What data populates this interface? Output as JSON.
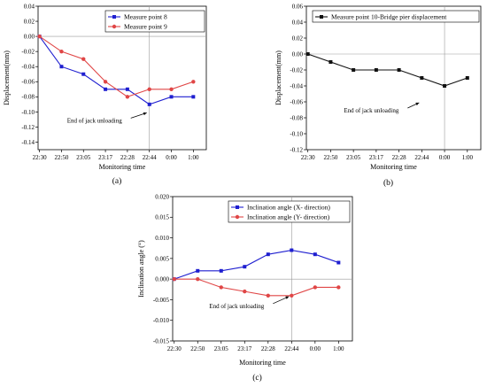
{
  "chart_data": [
    {
      "type": "line",
      "caption": "(a)",
      "xlabel": "Monitoring time",
      "ylabel": "Displacement(mm)",
      "categories": [
        "22:30",
        "22:50",
        "23:05",
        "23:17",
        "22:28",
        "22:44",
        "0:00",
        "1:00"
      ],
      "ylim": [
        -0.15,
        0.04
      ],
      "yticks": [
        "0.04",
        "0.02",
        "0.00",
        "-0.02",
        "-0.04",
        "-0.06",
        "-0.08",
        "-0.10",
        "-0.12",
        "-0.14"
      ],
      "ytick_values": [
        0.04,
        0.02,
        0.0,
        -0.02,
        -0.04,
        -0.06,
        -0.08,
        -0.1,
        -0.12,
        -0.14
      ],
      "legend_position": "top-right",
      "series": [
        {
          "name": "Measure point 8",
          "color": "#1f1fd0",
          "marker": "square",
          "values": [
            0.0,
            -0.04,
            -0.05,
            -0.07,
            -0.07,
            -0.09,
            -0.08,
            -0.08
          ]
        },
        {
          "name": "Measure point 9",
          "color": "#e04646",
          "marker": "circle",
          "values": [
            0.0,
            -0.02,
            -0.03,
            -0.06,
            -0.08,
            -0.07,
            -0.07,
            -0.06
          ]
        }
      ],
      "annotation": {
        "text": "End of jack unloading",
        "at_category": "22:44",
        "at_value": -0.1
      },
      "vline_at": "22:44",
      "hline_at": 0
    },
    {
      "type": "line",
      "caption": "(b)",
      "xlabel": "Monitoring time",
      "ylabel": "Displacement(mm)",
      "categories": [
        "22:30",
        "22:50",
        "23:05",
        "23:17",
        "22:28",
        "22:44",
        "0:00",
        "1:00"
      ],
      "ylim": [
        -0.12,
        0.06
      ],
      "yticks": [
        "0.06",
        "0.04",
        "0.02",
        "0.00",
        "-0.02",
        "-0.04",
        "-0.06",
        "-0.08",
        "-0.10",
        "-0.12"
      ],
      "ytick_values": [
        0.06,
        0.04,
        0.02,
        0.0,
        -0.02,
        -0.04,
        -0.06,
        -0.08,
        -0.1,
        -0.12
      ],
      "legend_position": "top-right",
      "series": [
        {
          "name": "Measure point 10-Bridge pier displacement",
          "color": "#111111",
          "marker": "square",
          "values": [
            0.0,
            -0.01,
            -0.02,
            -0.02,
            -0.02,
            -0.03,
            -0.04,
            -0.03
          ]
        }
      ],
      "annotation": {
        "text": "End of jack unloading",
        "at_category": "22:44",
        "at_value": -0.06
      },
      "vline_at": "0:00",
      "hline_at": 0
    },
    {
      "type": "line",
      "caption": "(c)",
      "xlabel": "Monitoring time",
      "ylabel": "Inclination angle (°)",
      "categories": [
        "22:30",
        "22:50",
        "23:05",
        "23:17",
        "22:28",
        "22:44",
        "0:00",
        "1:00"
      ],
      "ylim": [
        -0.015,
        0.02
      ],
      "yticks": [
        "0.020",
        "0.015",
        "0.010",
        "0.005",
        "0.000",
        "-0.005",
        "-0.010",
        "-0.015"
      ],
      "ytick_values": [
        0.02,
        0.015,
        0.01,
        0.005,
        0.0,
        -0.005,
        -0.01,
        -0.015
      ],
      "legend_position": "top-right",
      "series": [
        {
          "name": "Inclination angle (X- direction)",
          "color": "#1f1fd0",
          "marker": "square",
          "values": [
            0.0,
            0.002,
            0.002,
            0.003,
            0.006,
            0.007,
            0.006,
            0.004
          ]
        },
        {
          "name": "Inclination angle (Y- direction)",
          "color": "#e04646",
          "marker": "circle",
          "values": [
            0.0,
            0.0,
            -0.002,
            -0.003,
            -0.004,
            -0.004,
            -0.002,
            -0.002
          ]
        }
      ],
      "annotation": {
        "text": "End of jack unloading",
        "at_category": "22:44",
        "at_value": -0.004
      },
      "vline_at": "22:44",
      "hline_at": 0
    }
  ]
}
